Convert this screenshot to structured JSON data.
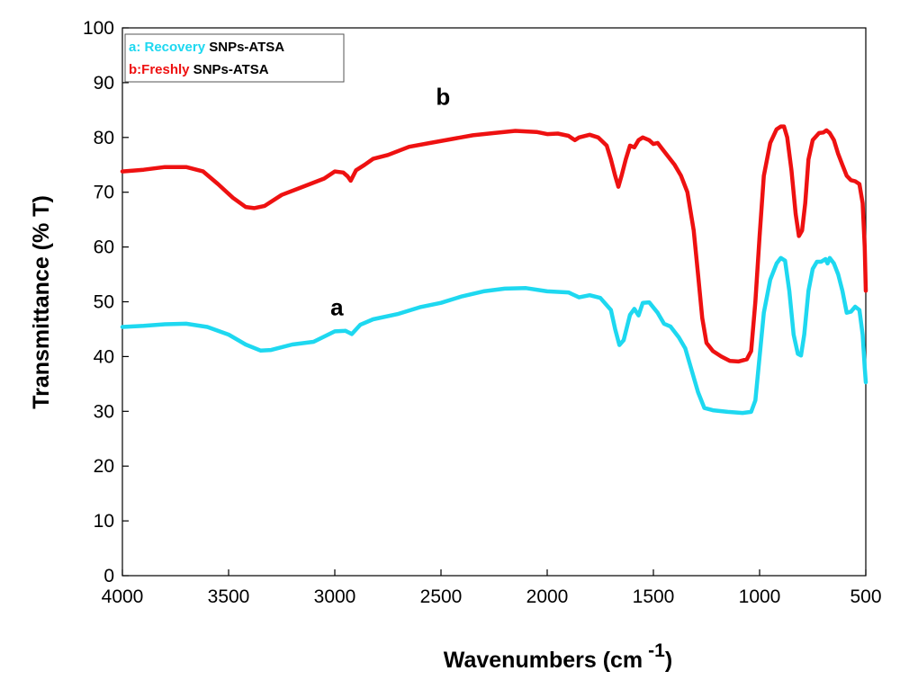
{
  "chart_data": {
    "type": "line",
    "xlabel_main": "Wavenumbers (cm",
    "xlabel_sup": "-1",
    "xlabel_close": ")",
    "ylabel": "Transmittance (% T)",
    "xlim": [
      4000,
      500
    ],
    "ylim": [
      0,
      100
    ],
    "x_reversed": true,
    "grid": false,
    "legend_position": "top-left",
    "xticks": [
      "4000",
      "3500",
      "3000",
      "2500",
      "2000",
      "1500",
      "1000",
      "500"
    ],
    "yticks": [
      "0",
      "10",
      "20",
      "30",
      "40",
      "50",
      "60",
      "70",
      "80",
      "90",
      "100"
    ],
    "legend": [
      {
        "prefix": "a: Recovery",
        "suffix": " SNPs-ATSA",
        "color": "#1ED8F0"
      },
      {
        "prefix": "b:Freshly",
        "suffix": " SNPs-ATSA",
        "color": "#EE1111"
      }
    ],
    "annotations": [
      {
        "text": "a",
        "x": 2990,
        "y": 47.5
      },
      {
        "text": "b",
        "x": 2490,
        "y": 86
      }
    ],
    "series": [
      {
        "name": "a: Recovery SNPs-ATSA",
        "color": "#1ED8F0",
        "points": [
          [
            4000,
            45.4
          ],
          [
            3900,
            45.6
          ],
          [
            3800,
            45.9
          ],
          [
            3700,
            46.0
          ],
          [
            3600,
            45.4
          ],
          [
            3500,
            44.0
          ],
          [
            3420,
            42.2
          ],
          [
            3350,
            41.1
          ],
          [
            3300,
            41.2
          ],
          [
            3200,
            42.2
          ],
          [
            3100,
            42.7
          ],
          [
            3000,
            44.6
          ],
          [
            2950,
            44.7
          ],
          [
            2920,
            44.1
          ],
          [
            2880,
            45.8
          ],
          [
            2820,
            46.8
          ],
          [
            2700,
            47.8
          ],
          [
            2600,
            49.0
          ],
          [
            2500,
            49.8
          ],
          [
            2400,
            51.0
          ],
          [
            2300,
            51.9
          ],
          [
            2200,
            52.4
          ],
          [
            2100,
            52.5
          ],
          [
            2000,
            51.9
          ],
          [
            1900,
            51.7
          ],
          [
            1850,
            50.8
          ],
          [
            1800,
            51.2
          ],
          [
            1750,
            50.7
          ],
          [
            1700,
            48.5
          ],
          [
            1680,
            45.0
          ],
          [
            1660,
            42.1
          ],
          [
            1640,
            43.0
          ],
          [
            1610,
            47.6
          ],
          [
            1590,
            48.7
          ],
          [
            1570,
            47.5
          ],
          [
            1550,
            49.8
          ],
          [
            1520,
            49.9
          ],
          [
            1480,
            48.0
          ],
          [
            1450,
            46.0
          ],
          [
            1420,
            45.5
          ],
          [
            1380,
            43.5
          ],
          [
            1350,
            41.5
          ],
          [
            1320,
            37.5
          ],
          [
            1290,
            33.5
          ],
          [
            1260,
            30.6
          ],
          [
            1220,
            30.2
          ],
          [
            1150,
            29.9
          ],
          [
            1080,
            29.7
          ],
          [
            1040,
            29.9
          ],
          [
            1020,
            32.0
          ],
          [
            1000,
            40.0
          ],
          [
            980,
            48.0
          ],
          [
            950,
            54.0
          ],
          [
            920,
            57.0
          ],
          [
            900,
            58.0
          ],
          [
            880,
            57.5
          ],
          [
            860,
            52.0
          ],
          [
            840,
            44.0
          ],
          [
            820,
            40.5
          ],
          [
            805,
            40.2
          ],
          [
            790,
            44.0
          ],
          [
            770,
            52.0
          ],
          [
            750,
            56.0
          ],
          [
            730,
            57.3
          ],
          [
            710,
            57.3
          ],
          [
            690,
            57.8
          ],
          [
            680,
            57.0
          ],
          [
            670,
            58.0
          ],
          [
            650,
            57.0
          ],
          [
            630,
            55.0
          ],
          [
            610,
            52.0
          ],
          [
            590,
            48.0
          ],
          [
            570,
            48.2
          ],
          [
            550,
            49.1
          ],
          [
            530,
            48.5
          ],
          [
            515,
            44.0
          ],
          [
            505,
            38.0
          ],
          [
            500,
            35.3
          ]
        ]
      },
      {
        "name": "b:Freshly SNPs-ATSA",
        "color": "#EE1111",
        "points": [
          [
            4000,
            73.8
          ],
          [
            3900,
            74.1
          ],
          [
            3800,
            74.6
          ],
          [
            3700,
            74.6
          ],
          [
            3620,
            73.8
          ],
          [
            3550,
            71.5
          ],
          [
            3480,
            69.0
          ],
          [
            3420,
            67.3
          ],
          [
            3380,
            67.1
          ],
          [
            3330,
            67.5
          ],
          [
            3250,
            69.5
          ],
          [
            3150,
            71.0
          ],
          [
            3050,
            72.5
          ],
          [
            3000,
            73.8
          ],
          [
            2960,
            73.6
          ],
          [
            2940,
            72.9
          ],
          [
            2925,
            72.1
          ],
          [
            2900,
            74.0
          ],
          [
            2860,
            75.0
          ],
          [
            2820,
            76.1
          ],
          [
            2750,
            76.8
          ],
          [
            2650,
            78.3
          ],
          [
            2550,
            79.0
          ],
          [
            2450,
            79.7
          ],
          [
            2350,
            80.4
          ],
          [
            2250,
            80.8
          ],
          [
            2150,
            81.2
          ],
          [
            2050,
            81.0
          ],
          [
            2000,
            80.6
          ],
          [
            1950,
            80.7
          ],
          [
            1900,
            80.3
          ],
          [
            1870,
            79.5
          ],
          [
            1850,
            80.0
          ],
          [
            1800,
            80.5
          ],
          [
            1760,
            80.0
          ],
          [
            1720,
            78.5
          ],
          [
            1700,
            76.0
          ],
          [
            1680,
            73.0
          ],
          [
            1665,
            71.0
          ],
          [
            1650,
            73.0
          ],
          [
            1630,
            76.0
          ],
          [
            1610,
            78.5
          ],
          [
            1590,
            78.2
          ],
          [
            1570,
            79.5
          ],
          [
            1550,
            80.0
          ],
          [
            1520,
            79.5
          ],
          [
            1500,
            78.8
          ],
          [
            1480,
            79.0
          ],
          [
            1460,
            78.0
          ],
          [
            1430,
            76.5
          ],
          [
            1400,
            75.0
          ],
          [
            1370,
            73.0
          ],
          [
            1340,
            70.0
          ],
          [
            1310,
            63.0
          ],
          [
            1290,
            55.0
          ],
          [
            1270,
            47.0
          ],
          [
            1250,
            42.5
          ],
          [
            1220,
            41.0
          ],
          [
            1180,
            40.0
          ],
          [
            1140,
            39.2
          ],
          [
            1100,
            39.1
          ],
          [
            1060,
            39.5
          ],
          [
            1040,
            41.0
          ],
          [
            1020,
            50.0
          ],
          [
            1000,
            62.0
          ],
          [
            980,
            73.0
          ],
          [
            950,
            79.0
          ],
          [
            920,
            81.5
          ],
          [
            900,
            82.0
          ],
          [
            885,
            82.0
          ],
          [
            870,
            80.0
          ],
          [
            850,
            74.0
          ],
          [
            830,
            66.0
          ],
          [
            815,
            62.0
          ],
          [
            800,
            63.0
          ],
          [
            785,
            68.0
          ],
          [
            770,
            76.0
          ],
          [
            750,
            79.5
          ],
          [
            720,
            80.8
          ],
          [
            700,
            80.9
          ],
          [
            685,
            81.3
          ],
          [
            670,
            80.8
          ],
          [
            650,
            79.5
          ],
          [
            630,
            77.0
          ],
          [
            610,
            75.0
          ],
          [
            590,
            73.0
          ],
          [
            570,
            72.2
          ],
          [
            550,
            72.0
          ],
          [
            530,
            71.5
          ],
          [
            515,
            68.0
          ],
          [
            505,
            60.0
          ],
          [
            500,
            52.0
          ]
        ]
      }
    ]
  }
}
